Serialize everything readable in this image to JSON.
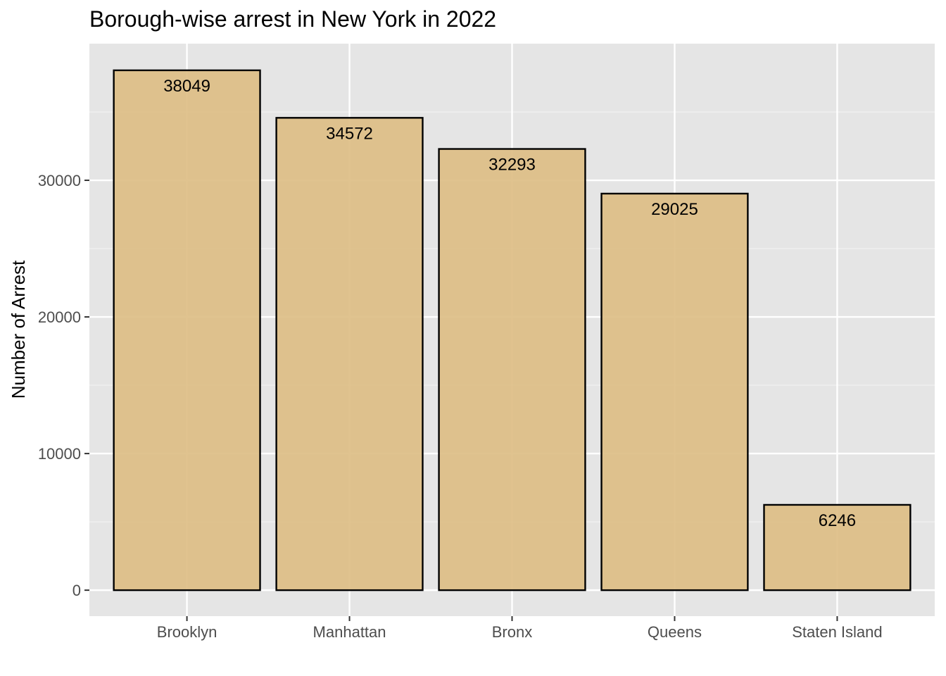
{
  "chart_data": {
    "type": "bar",
    "title": "Borough-wise arrest in New York in 2022",
    "xlabel": "",
    "ylabel": "Number of Arrest",
    "categories": [
      "Brooklyn",
      "Manhattan",
      "Bronx",
      "Queens",
      "Staten Island"
    ],
    "values": [
      38049,
      34572,
      32293,
      29025,
      6246
    ],
    "data_labels": [
      "38049",
      "34572",
      "32293",
      "29025",
      "6246"
    ],
    "yticks": [
      0,
      10000,
      20000,
      30000
    ],
    "ytick_labels": [
      "0",
      "10000",
      "20000",
      "30000"
    ],
    "ylim": [
      -1900,
      40000
    ],
    "grid": true,
    "legend": "none",
    "colors": {
      "panel_background": "#e5e5e5",
      "grid_major": "#ffffff",
      "grid_minor": "#f2f2f2",
      "bar_fill": "#ddbe86",
      "bar_stroke": "#000000",
      "tick_mark": "#333333"
    }
  }
}
